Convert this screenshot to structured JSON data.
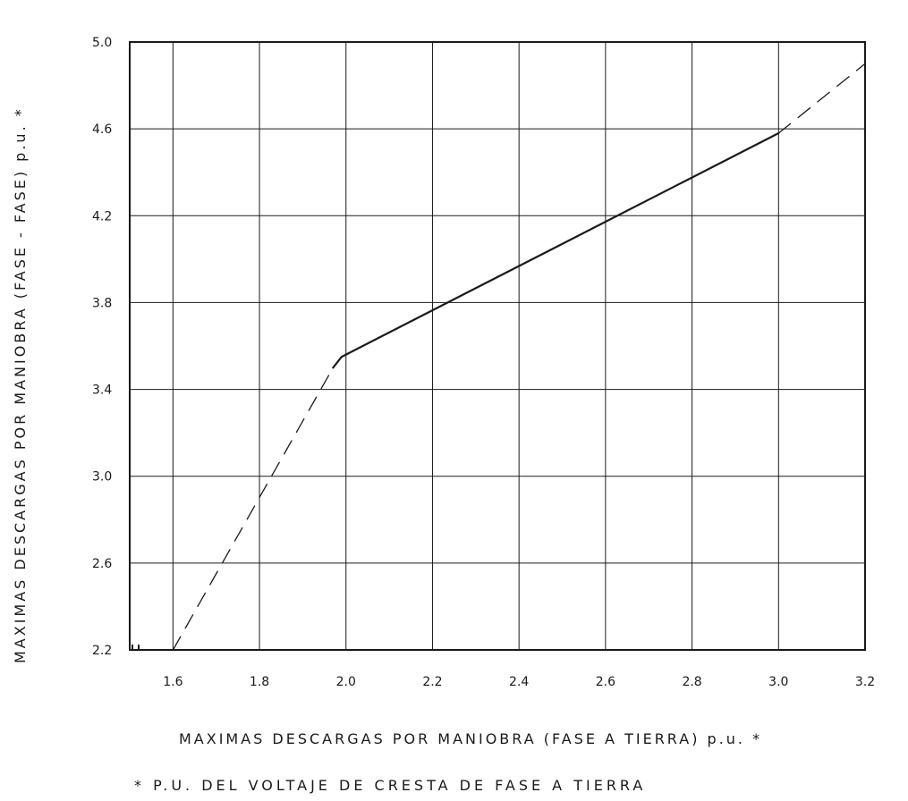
{
  "chart_data": {
    "type": "line",
    "title": "",
    "xlabel": "MAXIMAS DESCARGAS POR MANIOBRA (FASE A TIERRA) p.u. *",
    "ylabel": "MAXIMAS DESCARGAS POR MANIOBRA (FASE - FASE) p.u. *",
    "footnote": "* P.U. DEL VOLTAJE DE CRESTA DE FASE A TIERRA",
    "xlim": [
      1.5,
      3.2
    ],
    "ylim": [
      2.2,
      5.0
    ],
    "x_ticks": [
      "1.6",
      "1.8",
      "2.0",
      "2.2",
      "2.4",
      "2.6",
      "2.8",
      "3.0",
      "3.2"
    ],
    "y_ticks": [
      "2.2",
      "2.6",
      "3.0",
      "3.4",
      "3.8",
      "4.2",
      "4.6",
      "5.0"
    ],
    "grid": true,
    "series": [
      {
        "style": "dashed",
        "color": "#1a1a1a",
        "x": [
          1.6,
          1.97
        ],
        "y": [
          2.2,
          3.5
        ]
      },
      {
        "style": "solid",
        "color": "#1a1a1a",
        "x": [
          1.97,
          1.99,
          3.0
        ],
        "y": [
          3.5,
          3.55,
          4.58
        ]
      },
      {
        "style": "dashed",
        "color": "#1a1a1a",
        "x": [
          3.0,
          3.2
        ],
        "y": [
          4.58,
          4.9
        ]
      }
    ]
  }
}
